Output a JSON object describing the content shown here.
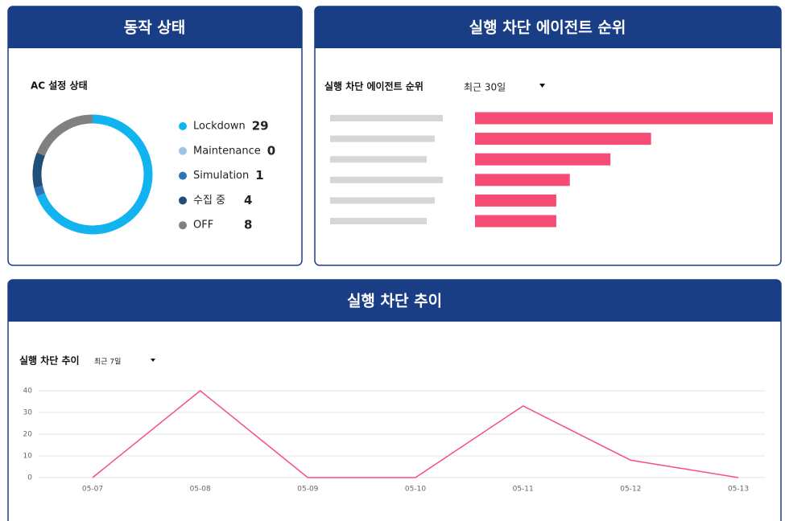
{
  "panels": [
    {
      "title": "동작 상태"
    },
    {
      "title": "실행 차단 에이전트 순위"
    },
    {
      "title": "실행 차단 추이"
    }
  ],
  "chart_data": [
    {
      "type": "pie",
      "title": "AC 설정 상태",
      "categories": [
        "Lockdown",
        "Maintenance",
        "Simulation",
        "수집 중",
        "OFF"
      ],
      "values": [
        29,
        0,
        1,
        4,
        8
      ],
      "colors": [
        "#12b4f0",
        "#9dc3e6",
        "#2e75b6",
        "#1f4e79",
        "#808080"
      ]
    },
    {
      "type": "hbar",
      "title": "실행 차단 에이전트 순위",
      "filter": "최근 30일",
      "categories": [
        null,
        null,
        null,
        null,
        null,
        null
      ],
      "values": [
        22,
        13,
        10,
        7,
        6,
        6
      ],
      "color": "#f44c74"
    },
    {
      "type": "line",
      "title": "실행 차단 추이",
      "filter": "최근 7일",
      "categories": [
        "05-07",
        "05-08",
        "05-09",
        "05-10",
        "05-11",
        "05-12",
        "05-13"
      ],
      "values": [
        0,
        40,
        0,
        0,
        33,
        8,
        0
      ],
      "color": "#f7507a",
      "ylim": [
        0,
        40
      ],
      "yticks": [
        0,
        10,
        20,
        30,
        40
      ],
      "grid": true
    }
  ]
}
